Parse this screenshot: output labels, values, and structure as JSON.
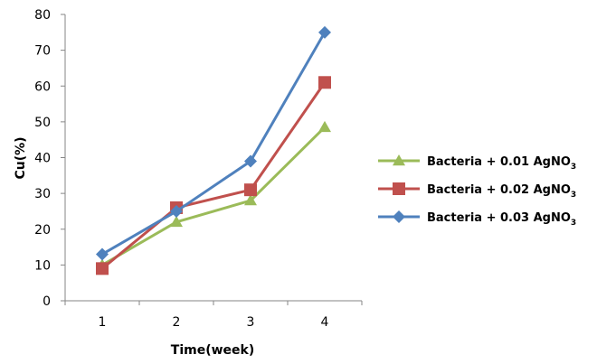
{
  "chart_data": {
    "type": "line",
    "title": "",
    "xlabel": "Time(week)",
    "ylabel": "Cu(%)",
    "categories": [
      "1",
      "2",
      "3",
      "4"
    ],
    "ylim": [
      0,
      80
    ],
    "yticks": [
      0,
      10,
      20,
      30,
      40,
      50,
      60,
      70,
      80
    ],
    "grid": false,
    "legend_position": "right",
    "series": [
      {
        "name": "Bacteria + 0.01 AgNO3",
        "label_main": "Bacteria + 0.01 AgNO",
        "label_sub": "3",
        "values": [
          10,
          22,
          28,
          48.5
        ],
        "color": "#9BBB59",
        "marker": "triangle"
      },
      {
        "name": "Bacteria + 0.02 AgNO3",
        "label_main": "Bacteria + 0.02 AgNO",
        "label_sub": "3",
        "values": [
          9,
          26,
          31,
          61
        ],
        "color": "#C0504D",
        "marker": "square"
      },
      {
        "name": "Bacteria + 0.03 AgNO3",
        "label_main": "Bacteria + 0.03 AgNO",
        "label_sub": "3",
        "values": [
          13,
          25,
          39,
          75
        ],
        "color": "#4F81BD",
        "marker": "diamond"
      }
    ]
  }
}
